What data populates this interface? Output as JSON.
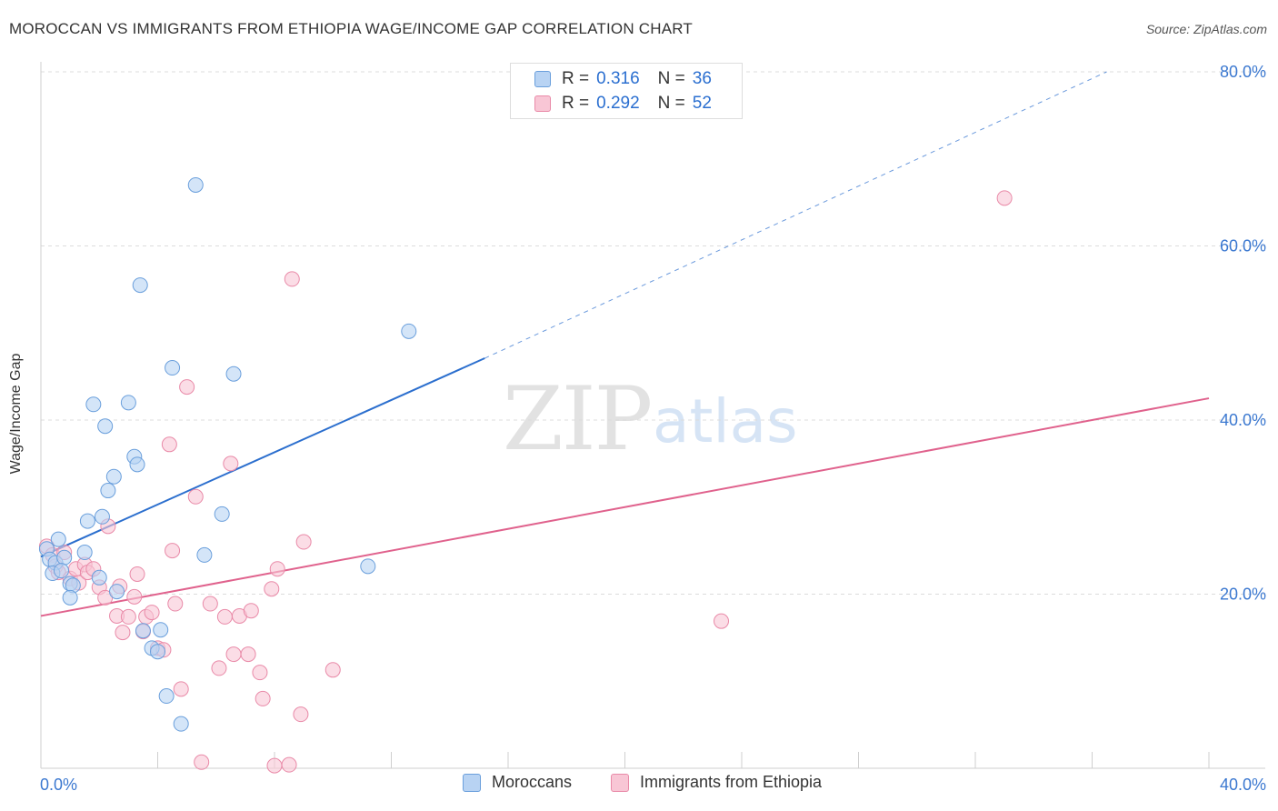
{
  "title": "MOROCCAN VS IMMIGRANTS FROM ETHIOPIA WAGE/INCOME GAP CORRELATION CHART",
  "source": "Source: ZipAtlas.com",
  "watermark": {
    "zip": "ZIP",
    "atlas": "atlas"
  },
  "legend_top": [
    {
      "r_label": "R =",
      "r_value": "0.316",
      "n_label": "N =",
      "n_value": "36"
    },
    {
      "r_label": "R =",
      "r_value": "0.292",
      "n_label": "N =",
      "n_value": "52"
    }
  ],
  "colors": {
    "blue_fill": "#b8d3f3",
    "blue_stroke": "#6a9fdc",
    "blue_line": "#2c6fce",
    "pink_fill": "#f8c6d5",
    "pink_stroke": "#e98aa8",
    "pink_line": "#e0628d",
    "axis_text": "#3b78d0"
  },
  "chart_data": {
    "type": "scatter",
    "title": "MOROCCAN VS IMMIGRANTS FROM ETHIOPIA WAGE/INCOME GAP CORRELATION CHART",
    "xlabel": "",
    "ylabel": "Wage/Income Gap",
    "xlim": [
      0,
      40
    ],
    "ylim": [
      0,
      80
    ],
    "x_tick_labels": [
      "0.0%",
      "40.0%"
    ],
    "y_ticks": [
      20,
      40,
      60,
      80
    ],
    "y_tick_labels": [
      "20.0%",
      "40.0%",
      "60.0%",
      "80.0%"
    ],
    "grid": true,
    "legend_position": "bottom",
    "series": [
      {
        "name": "Moroccans",
        "r": 0.316,
        "n": 36,
        "trend": {
          "x0": 0,
          "y0": 24.3,
          "x1": 15.2,
          "y1": 47.1,
          "dash_x1": 36.5,
          "dash_y1": 80
        },
        "points": [
          [
            0.2,
            25.2
          ],
          [
            0.3,
            24.0
          ],
          [
            0.5,
            23.6
          ],
          [
            0.4,
            22.4
          ],
          [
            0.6,
            26.3
          ],
          [
            0.8,
            24.2
          ],
          [
            0.7,
            22.7
          ],
          [
            1.0,
            21.2
          ],
          [
            1.1,
            21.0
          ],
          [
            1.5,
            24.8
          ],
          [
            1.6,
            28.4
          ],
          [
            2.0,
            21.9
          ],
          [
            1.8,
            41.8
          ],
          [
            2.2,
            39.3
          ],
          [
            2.3,
            31.9
          ],
          [
            2.1,
            28.9
          ],
          [
            2.5,
            33.5
          ],
          [
            2.6,
            20.3
          ],
          [
            3.0,
            42.0
          ],
          [
            3.2,
            35.8
          ],
          [
            3.3,
            34.9
          ],
          [
            3.4,
            55.5
          ],
          [
            3.5,
            15.8
          ],
          [
            3.8,
            13.8
          ],
          [
            4.1,
            15.9
          ],
          [
            4.0,
            13.4
          ],
          [
            4.3,
            8.3
          ],
          [
            4.5,
            46.0
          ],
          [
            4.8,
            5.1
          ],
          [
            5.3,
            67.0
          ],
          [
            5.6,
            24.5
          ],
          [
            6.2,
            29.2
          ],
          [
            6.6,
            45.3
          ],
          [
            11.2,
            23.2
          ],
          [
            12.6,
            50.2
          ],
          [
            1.0,
            19.6
          ]
        ]
      },
      {
        "name": "Immigrants from Ethiopia",
        "r": 0.292,
        "n": 52,
        "trend": {
          "x0": 0,
          "y0": 17.5,
          "x1": 40,
          "y1": 42.5
        },
        "points": [
          [
            0.2,
            25.5
          ],
          [
            0.4,
            24.5
          ],
          [
            0.5,
            23.2
          ],
          [
            0.6,
            22.5
          ],
          [
            0.8,
            24.8
          ],
          [
            1.0,
            21.8
          ],
          [
            1.2,
            22.9
          ],
          [
            1.3,
            21.3
          ],
          [
            1.5,
            23.4
          ],
          [
            1.6,
            22.5
          ],
          [
            1.8,
            22.9
          ],
          [
            2.0,
            20.8
          ],
          [
            2.2,
            19.6
          ],
          [
            2.3,
            27.8
          ],
          [
            2.6,
            17.5
          ],
          [
            2.7,
            20.9
          ],
          [
            2.8,
            15.6
          ],
          [
            3.0,
            17.4
          ],
          [
            3.2,
            19.7
          ],
          [
            3.3,
            22.3
          ],
          [
            3.5,
            15.7
          ],
          [
            3.6,
            17.4
          ],
          [
            3.8,
            17.9
          ],
          [
            4.0,
            13.8
          ],
          [
            4.2,
            13.6
          ],
          [
            4.5,
            25.0
          ],
          [
            4.4,
            37.2
          ],
          [
            4.6,
            18.9
          ],
          [
            4.8,
            9.1
          ],
          [
            5.0,
            43.8
          ],
          [
            5.3,
            31.2
          ],
          [
            5.5,
            0.7
          ],
          [
            5.8,
            18.9
          ],
          [
            6.1,
            11.5
          ],
          [
            6.3,
            17.4
          ],
          [
            6.5,
            35.0
          ],
          [
            6.6,
            13.1
          ],
          [
            6.8,
            17.5
          ],
          [
            7.1,
            13.1
          ],
          [
            7.2,
            18.1
          ],
          [
            7.5,
            11.0
          ],
          [
            7.6,
            8.0
          ],
          [
            7.9,
            20.6
          ],
          [
            8.1,
            22.9
          ],
          [
            8.0,
            0.3
          ],
          [
            8.5,
            0.4
          ],
          [
            8.6,
            56.2
          ],
          [
            8.9,
            6.2
          ],
          [
            9.0,
            26.0
          ],
          [
            10.0,
            11.3
          ],
          [
            23.3,
            16.9
          ],
          [
            33.0,
            65.5
          ]
        ]
      }
    ]
  }
}
